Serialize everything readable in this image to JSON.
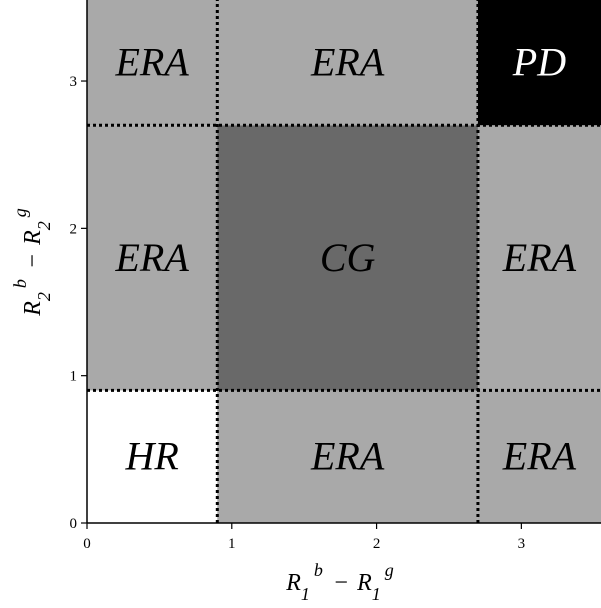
{
  "chart_data": {
    "type": "heatmap",
    "title": "",
    "xlabel": {
      "base": "R",
      "sub1": "1",
      "sup1": "b",
      "minus": "−",
      "sub2": "1",
      "sup2": "g"
    },
    "ylabel": {
      "base": "R",
      "sub1": "2",
      "sup1": "b",
      "minus": "−",
      "sub2": "2",
      "sup2": "g"
    },
    "xlim": [
      0,
      3.55
    ],
    "ylim": [
      0,
      3.55
    ],
    "x_ticks": [
      0,
      1,
      2,
      3
    ],
    "y_ticks": [
      0,
      1,
      2,
      3
    ],
    "x_tick_labels": [
      "0",
      "1",
      "2",
      "3"
    ],
    "y_tick_labels": [
      "0",
      "1",
      "2",
      "3"
    ],
    "thresholds": {
      "x": [
        0.9,
        2.7
      ],
      "y": [
        0.9,
        2.7
      ]
    },
    "regions": [
      {
        "label": "HR",
        "x": [
          0,
          0.9
        ],
        "y": [
          0,
          0.9
        ],
        "color": "#ffffff",
        "text_color": "#000000"
      },
      {
        "label": "ERA",
        "x": [
          0.9,
          2.7
        ],
        "y": [
          0,
          0.9
        ],
        "color": "#a9a9a9",
        "text_color": "#000000"
      },
      {
        "label": "ERA",
        "x": [
          2.7,
          3.55
        ],
        "y": [
          0,
          0.9
        ],
        "color": "#a9a9a9",
        "text_color": "#000000"
      },
      {
        "label": "ERA",
        "x": [
          0,
          0.9
        ],
        "y": [
          0.9,
          2.7
        ],
        "color": "#a9a9a9",
        "text_color": "#000000"
      },
      {
        "label": "CG",
        "x": [
          0.9,
          2.7
        ],
        "y": [
          0.9,
          2.7
        ],
        "color": "#696969",
        "text_color": "#000000"
      },
      {
        "label": "ERA",
        "x": [
          2.7,
          3.55
        ],
        "y": [
          0.9,
          2.7
        ],
        "color": "#a9a9a9",
        "text_color": "#000000"
      },
      {
        "label": "ERA",
        "x": [
          0,
          0.9
        ],
        "y": [
          2.7,
          3.55
        ],
        "color": "#a9a9a9",
        "text_color": "#000000"
      },
      {
        "label": "ERA",
        "x": [
          0.9,
          2.7
        ],
        "y": [
          2.7,
          3.55
        ],
        "color": "#a9a9a9",
        "text_color": "#000000"
      },
      {
        "label": "PD",
        "x": [
          2.7,
          3.55
        ],
        "y": [
          2.7,
          3.55
        ],
        "color": "#000000",
        "text_color": "#ffffff"
      }
    ]
  }
}
